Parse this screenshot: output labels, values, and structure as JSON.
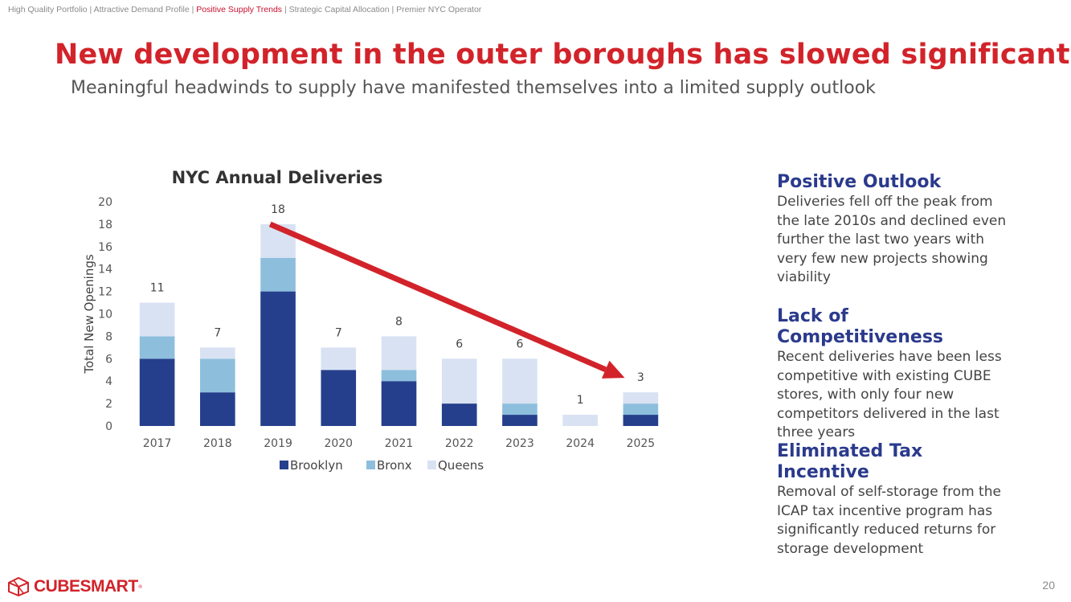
{
  "breadcrumb": {
    "item1": "High Quality Portfolio",
    "sep": " | ",
    "item2": "Attractive Demand Profile",
    "item3": "Positive Supply Trends",
    "item4": "Strategic Capital Allocation",
    "item5": "Premier NYC Operator"
  },
  "title": "New development in the outer boroughs has slowed significantly",
  "subtitle": "Meaningful headwinds to supply have manifested themselves into a limited supply outlook",
  "chart_data": {
    "type": "bar",
    "stacked": true,
    "title": "NYC Annual Deliveries",
    "ylabel": "Total New Openings",
    "xlabel": "",
    "ylim": [
      0,
      20
    ],
    "yticks": [
      0,
      2,
      4,
      6,
      8,
      10,
      12,
      14,
      16,
      18,
      20
    ],
    "categories": [
      "2017",
      "2018",
      "2019",
      "2020",
      "2021",
      "2022",
      "2023",
      "2024",
      "2025"
    ],
    "series": [
      {
        "name": "Brooklyn",
        "color": "#253f8c",
        "values": [
          6,
          3,
          12,
          5,
          4,
          2,
          1,
          0,
          1
        ]
      },
      {
        "name": "Bronx",
        "color": "#8dbfdd",
        "values": [
          2,
          3,
          3,
          0,
          1,
          0,
          1,
          0,
          1
        ]
      },
      {
        "name": "Queens",
        "color": "#d9e2f3",
        "values": [
          3,
          1,
          3,
          2,
          3,
          4,
          4,
          1,
          1
        ]
      }
    ],
    "totals": [
      11,
      7,
      18,
      7,
      8,
      6,
      6,
      1,
      3
    ],
    "legend_position": "bottom",
    "grid": false,
    "trend_arrow": {
      "from_category": "2019",
      "to_category": "2025",
      "color": "#d2232a"
    }
  },
  "sections": [
    {
      "heading": "Positive Outlook",
      "body": "Deliveries fell off the peak from the late 2010s and declined even further the last two years with very few new projects showing viability"
    },
    {
      "heading": "Lack of Competitiveness",
      "body": "Recent deliveries have been less competitive with existing CUBE stores, with only four new competitors delivered in the last three years"
    },
    {
      "heading": "Eliminated Tax Incentive",
      "body": "Removal of self-storage from the ICAP tax incentive program has significantly reduced returns for storage development"
    }
  ],
  "logo": {
    "text": "CUBESMART",
    "tm": "®"
  },
  "page_number": "20"
}
